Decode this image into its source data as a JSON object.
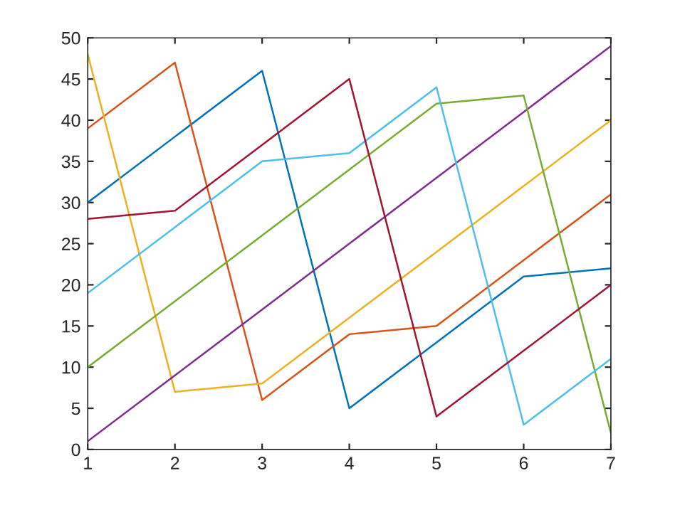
{
  "chart_data": {
    "type": "line",
    "x": [
      1,
      2,
      3,
      4,
      5,
      6,
      7
    ],
    "series": [
      {
        "color": "#0072bd",
        "values": [
          30,
          38,
          46,
          5,
          13,
          21,
          22
        ]
      },
      {
        "color": "#d95319",
        "values": [
          39,
          47,
          6,
          14,
          15,
          23,
          31
        ]
      },
      {
        "color": "#edb120",
        "values": [
          48,
          7,
          8,
          16,
          24,
          32,
          40
        ]
      },
      {
        "color": "#7e2f8e",
        "values": [
          1,
          9,
          17,
          25,
          33,
          41,
          49
        ]
      },
      {
        "color": "#77ac30",
        "values": [
          10,
          18,
          26,
          34,
          42,
          43,
          2
        ]
      },
      {
        "color": "#4dbeee",
        "values": [
          19,
          27,
          35,
          36,
          44,
          3,
          11
        ]
      },
      {
        "color": "#a2142f",
        "values": [
          28,
          29,
          37,
          45,
          4,
          12,
          20
        ]
      }
    ],
    "xlim": [
      1,
      7
    ],
    "xticks": [
      1,
      2,
      3,
      4,
      5,
      6,
      7
    ],
    "ylim": [
      0,
      50
    ],
    "yticks": [
      0,
      5,
      10,
      15,
      20,
      25,
      30,
      35,
      40,
      45,
      50
    ],
    "grid": false
  }
}
